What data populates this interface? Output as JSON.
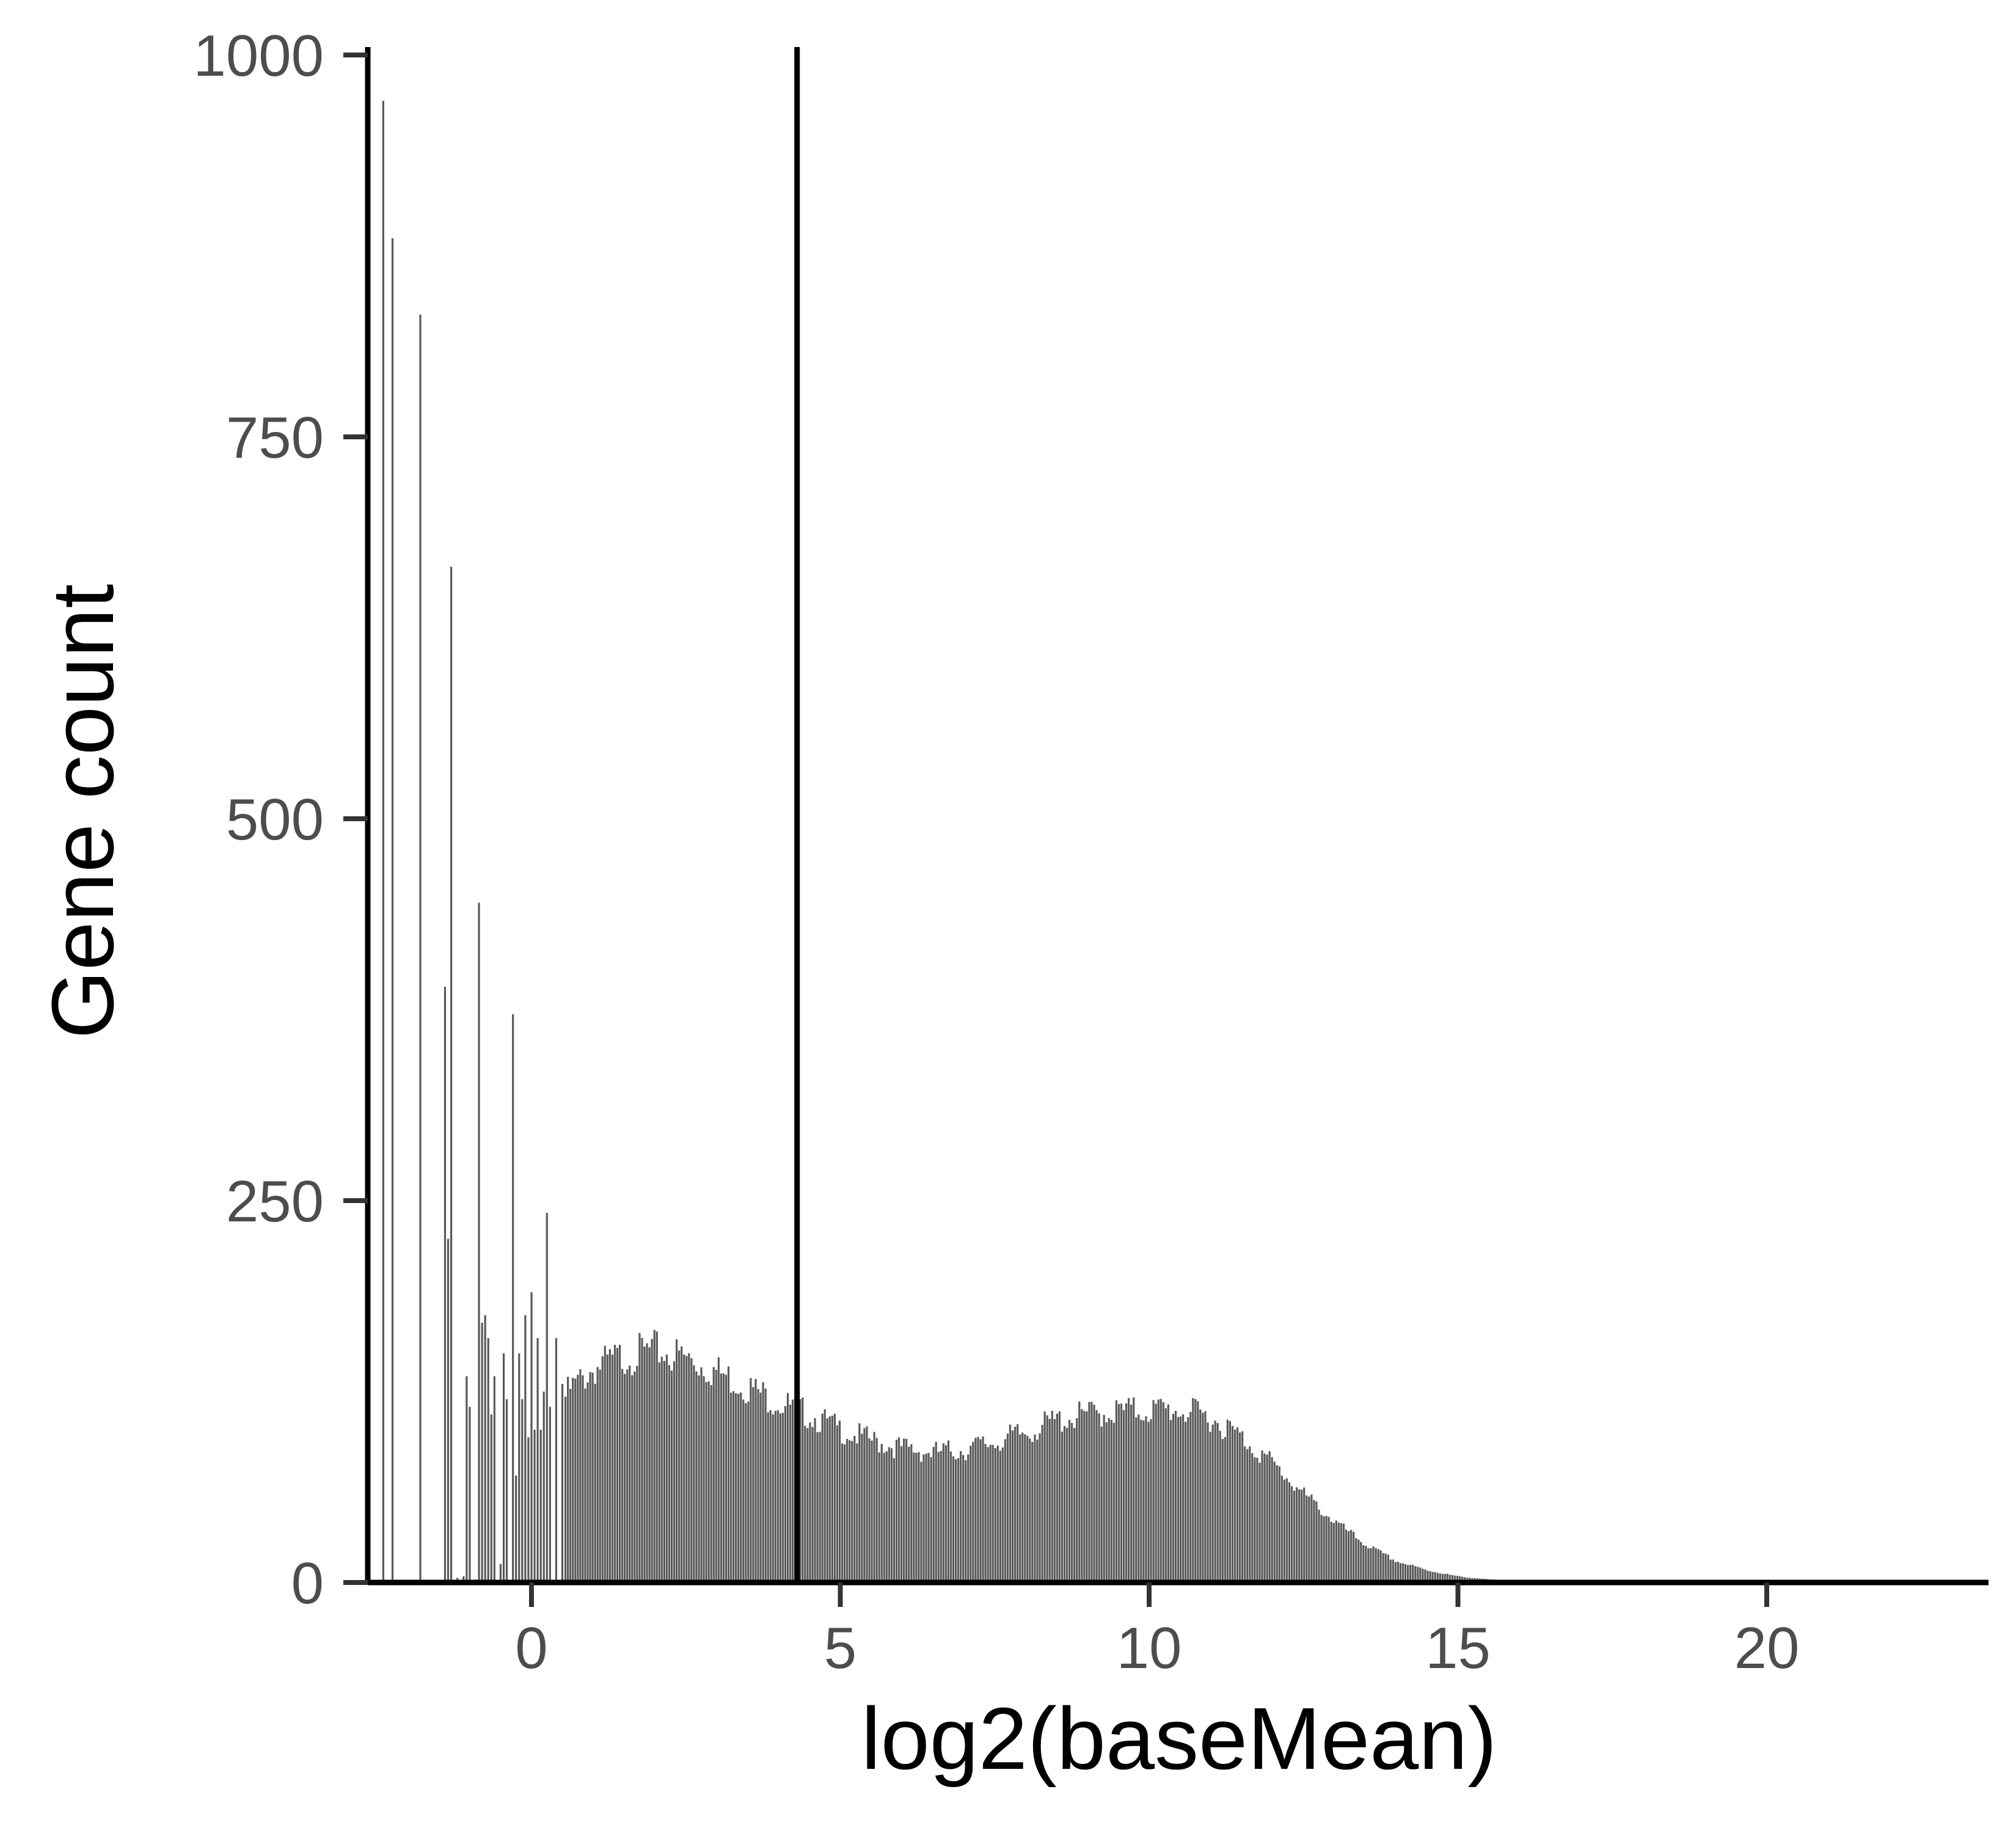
{
  "chart_data": {
    "type": "bar",
    "title": "",
    "xlabel": "log2(baseMean)",
    "ylabel": "Gene count",
    "xlim": [
      -2.8,
      23.6
    ],
    "ylim": [
      0,
      1000
    ],
    "x_ticks": [
      "0",
      "5",
      "10",
      "15",
      "20"
    ],
    "y_ticks": [
      "0",
      "250",
      "500",
      "750",
      "1000"
    ],
    "grid": false,
    "bar_color": "#595959",
    "vline": {
      "x": 4.3,
      "color": "#000000"
    },
    "bins": [
      {
        "x": -2.4,
        "y": 970
      },
      {
        "x": -2.25,
        "y": 880
      },
      {
        "x": -1.8,
        "y": 830
      },
      {
        "x": -1.4,
        "y": 390
      },
      {
        "x": -1.35,
        "y": 225
      },
      {
        "x": -1.3,
        "y": 665
      },
      {
        "x": -1.2,
        "y": 3
      },
      {
        "x": -1.1,
        "y": 4
      },
      {
        "x": -1.05,
        "y": 135
      },
      {
        "x": -1.0,
        "y": 115
      },
      {
        "x": -0.9,
        "y": 2
      },
      {
        "x": -0.85,
        "y": 445
      },
      {
        "x": -0.8,
        "y": 170
      },
      {
        "x": -0.75,
        "y": 175
      },
      {
        "x": -0.7,
        "y": 160
      },
      {
        "x": -0.65,
        "y": 110
      },
      {
        "x": -0.6,
        "y": 135
      },
      {
        "x": -0.5,
        "y": 12
      },
      {
        "x": -0.45,
        "y": 150
      },
      {
        "x": -0.4,
        "y": 120
      },
      {
        "x": -0.3,
        "y": 372
      },
      {
        "x": -0.25,
        "y": 70
      },
      {
        "x": -0.2,
        "y": 150
      },
      {
        "x": -0.15,
        "y": 120
      },
      {
        "x": -0.1,
        "y": 175
      },
      {
        "x": -0.05,
        "y": 95
      },
      {
        "x": 0.0,
        "y": 190
      },
      {
        "x": 0.05,
        "y": 100
      },
      {
        "x": 0.1,
        "y": 160
      },
      {
        "x": 0.15,
        "y": 100
      },
      {
        "x": 0.2,
        "y": 125
      },
      {
        "x": 0.25,
        "y": 242
      },
      {
        "x": 0.3,
        "y": 115
      },
      {
        "x": 0.4,
        "y": 160
      },
      {
        "x": 0.5,
        "y": 130
      },
      {
        "x": 6,
        "y": 20
      },
      {
        "x": 7,
        "y": 27
      },
      {
        "x": 8,
        "y": 34
      },
      {
        "x": 9,
        "y": 39
      }
    ],
    "smooth_profile": [
      [
        0.3,
        105
      ],
      [
        0.6,
        125
      ],
      [
        1.0,
        140
      ],
      [
        1.5,
        148
      ],
      [
        2.0,
        152
      ],
      [
        2.5,
        147
      ],
      [
        3.0,
        138
      ],
      [
        3.5,
        128
      ],
      [
        4.0,
        118
      ],
      [
        4.5,
        110
      ],
      [
        5.0,
        100
      ],
      [
        5.5,
        93
      ],
      [
        6.0,
        88
      ],
      [
        6.5,
        85
      ],
      [
        7.0,
        87
      ],
      [
        7.5,
        92
      ],
      [
        8.0,
        98
      ],
      [
        8.5,
        106
      ],
      [
        9.0,
        110
      ],
      [
        9.5,
        112
      ],
      [
        10.0,
        113
      ],
      [
        10.5,
        113
      ],
      [
        11.0,
        108
      ],
      [
        11.5,
        95
      ],
      [
        12.0,
        78
      ],
      [
        12.5,
        58
      ],
      [
        13.0,
        40
      ],
      [
        13.5,
        25
      ],
      [
        14.0,
        14
      ],
      [
        14.5,
        8
      ],
      [
        15.0,
        4
      ],
      [
        15.5,
        2
      ],
      [
        16.0,
        1
      ],
      [
        16.5,
        0
      ]
    ]
  }
}
